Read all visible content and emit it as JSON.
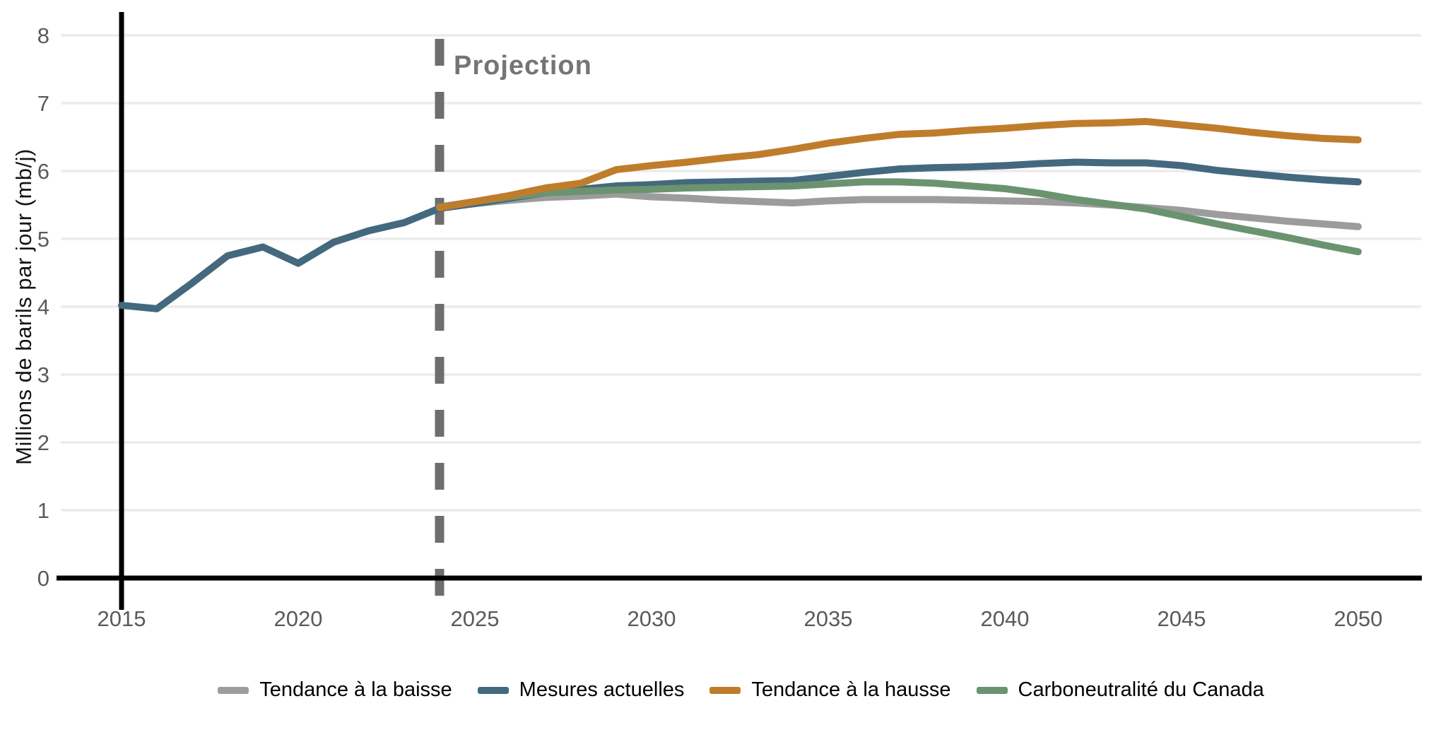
{
  "chart_data": {
    "type": "line",
    "title": "",
    "xlabel": "",
    "ylabel": "Millions de barils par jour (mb/j)",
    "x_ticks": [
      2015,
      2020,
      2025,
      2030,
      2035,
      2040,
      2045,
      2050
    ],
    "y_ticks": [
      0,
      1,
      2,
      3,
      4,
      5,
      6,
      7,
      8
    ],
    "xlim": [
      2013.3,
      2052
    ],
    "ylim": [
      0,
      8.5
    ],
    "grid": "horizontal",
    "legend_position": "bottom",
    "annotation": {
      "label": "Projection",
      "x": 2024,
      "line_color": "#6e6e6e",
      "text_color": "#757575"
    },
    "axis_colors": {
      "axis_line": "#000000",
      "gridline": "#ececec",
      "tick_text": "#5a5a5a"
    },
    "series": [
      {
        "name": "Tendance à la baisse",
        "color": "#9c9c9c",
        "x": [
          2024,
          2025,
          2026,
          2027,
          2028,
          2029,
          2030,
          2031,
          2032,
          2033,
          2034,
          2035,
          2036,
          2037,
          2038,
          2039,
          2040,
          2041,
          2042,
          2043,
          2044,
          2045,
          2046,
          2047,
          2048,
          2049,
          2050
        ],
        "values": [
          5.46,
          5.52,
          5.57,
          5.61,
          5.63,
          5.66,
          5.62,
          5.6,
          5.57,
          5.55,
          5.53,
          5.56,
          5.58,
          5.58,
          5.58,
          5.57,
          5.56,
          5.55,
          5.53,
          5.5,
          5.46,
          5.42,
          5.36,
          5.31,
          5.26,
          5.22,
          5.18
        ]
      },
      {
        "name": "Mesures actuelles",
        "color": "#44697e",
        "x": [
          2015,
          2016,
          2017,
          2018,
          2019,
          2020,
          2021,
          2022,
          2023,
          2024,
          2025,
          2026,
          2027,
          2028,
          2029,
          2030,
          2031,
          2032,
          2033,
          2034,
          2035,
          2036,
          2037,
          2038,
          2039,
          2040,
          2041,
          2042,
          2043,
          2044,
          2045,
          2046,
          2047,
          2048,
          2049,
          2050
        ],
        "values": [
          4.02,
          3.97,
          4.35,
          4.75,
          4.88,
          4.64,
          4.95,
          5.12,
          5.24,
          5.45,
          5.52,
          5.6,
          5.68,
          5.73,
          5.78,
          5.8,
          5.83,
          5.84,
          5.85,
          5.86,
          5.92,
          5.98,
          6.03,
          6.05,
          6.06,
          6.08,
          6.11,
          6.13,
          6.12,
          6.12,
          6.08,
          6.01,
          5.96,
          5.91,
          5.87,
          5.84
        ]
      },
      {
        "name": "Tendance à la hausse",
        "color": "#bf7d2b",
        "x": [
          2024,
          2025,
          2026,
          2027,
          2028,
          2029,
          2030,
          2031,
          2032,
          2033,
          2034,
          2035,
          2036,
          2037,
          2038,
          2039,
          2040,
          2041,
          2042,
          2043,
          2044,
          2045,
          2046,
          2047,
          2048,
          2049,
          2050
        ],
        "values": [
          5.46,
          5.55,
          5.64,
          5.75,
          5.82,
          6.02,
          6.08,
          6.13,
          6.19,
          6.24,
          6.32,
          6.41,
          6.48,
          6.54,
          6.56,
          6.6,
          6.63,
          6.67,
          6.7,
          6.71,
          6.73,
          6.68,
          6.63,
          6.57,
          6.52,
          6.48,
          6.46
        ]
      },
      {
        "name": "Carboneutralité du Canada",
        "color": "#6c9370",
        "x": [
          2024,
          2025,
          2026,
          2027,
          2028,
          2029,
          2030,
          2031,
          2032,
          2033,
          2034,
          2035,
          2036,
          2037,
          2038,
          2039,
          2040,
          2041,
          2042,
          2043,
          2044,
          2045,
          2046,
          2047,
          2048,
          2049,
          2050
        ],
        "values": [
          5.47,
          5.55,
          5.62,
          5.68,
          5.7,
          5.72,
          5.73,
          5.75,
          5.76,
          5.77,
          5.78,
          5.81,
          5.84,
          5.84,
          5.82,
          5.78,
          5.74,
          5.67,
          5.58,
          5.51,
          5.44,
          5.33,
          5.22,
          5.12,
          5.02,
          4.91,
          4.81
        ]
      }
    ],
    "draw_order": [
      0,
      1,
      3,
      2
    ],
    "history_boundary_year": 2024
  }
}
